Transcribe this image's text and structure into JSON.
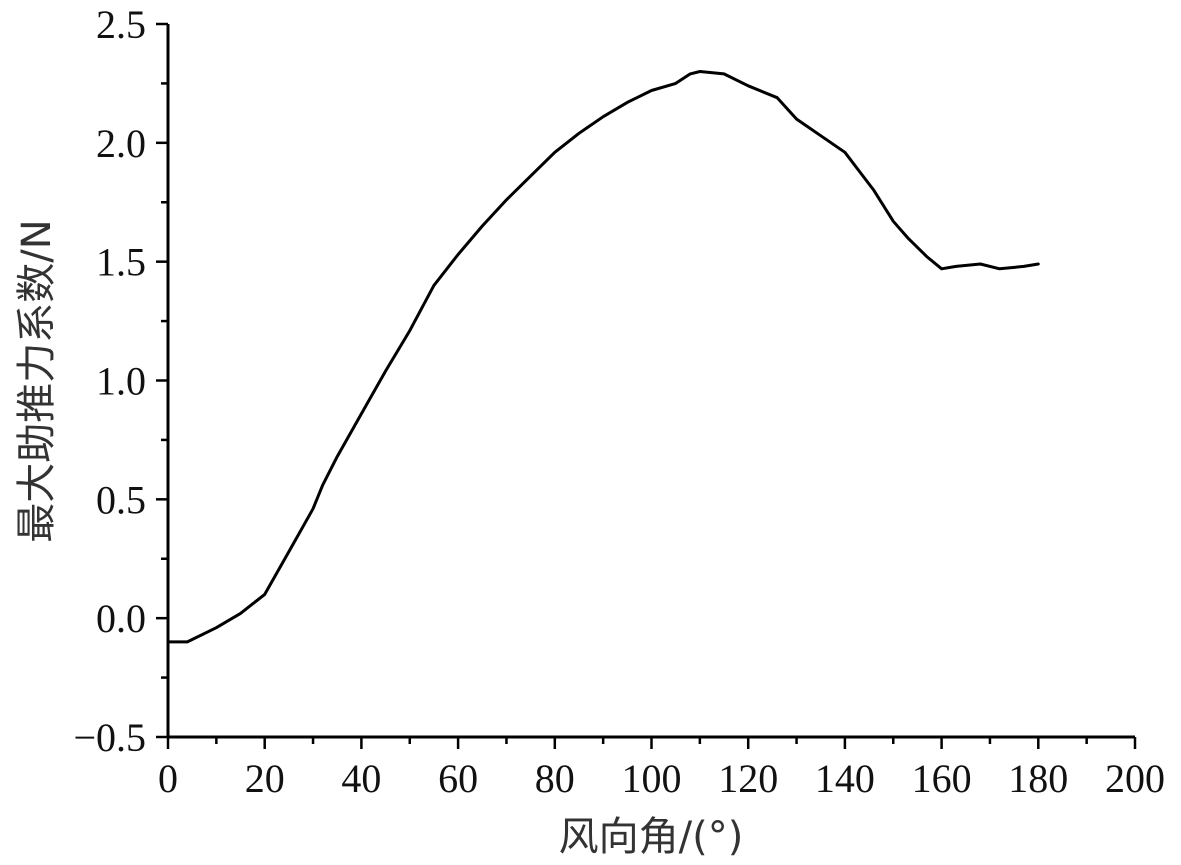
{
  "chart_data": {
    "type": "line",
    "title": "",
    "xlabel": "风向角/(°)",
    "ylabel": "最大助推力系数/N",
    "xlim": [
      0,
      200
    ],
    "ylim": [
      -0.5,
      2.5
    ],
    "x_ticks": [
      "0",
      "20",
      "40",
      "60",
      "80",
      "100",
      "120",
      "140",
      "160",
      "180",
      "200"
    ],
    "y_ticks": [
      "2.5",
      "2.0",
      "1.5",
      "1.0",
      "0.5",
      "0.0",
      "−0.5"
    ],
    "x_tick_values": [
      0,
      20,
      40,
      60,
      80,
      100,
      120,
      140,
      160,
      180,
      200
    ],
    "y_tick_values": [
      2.5,
      2.0,
      1.5,
      1.0,
      0.5,
      0.0,
      -0.5
    ],
    "x_minor_step": 10,
    "y_minor_step": 0.25,
    "grid": false,
    "legend": "none",
    "line_color": "#000000",
    "series": [
      {
        "x": [
          0,
          4,
          10,
          15,
          20,
          25,
          30,
          32,
          35,
          40,
          45,
          50,
          55,
          60,
          65,
          70,
          75,
          80,
          85,
          90,
          95,
          100,
          105,
          108,
          110,
          115,
          120,
          126,
          130,
          135,
          140,
          143,
          146,
          150,
          153,
          157,
          160,
          163,
          168,
          172,
          177,
          180
        ],
        "y": [
          -0.1,
          -0.1,
          -0.04,
          0.02,
          0.1,
          0.28,
          0.46,
          0.56,
          0.68,
          0.86,
          1.04,
          1.21,
          1.4,
          1.53,
          1.65,
          1.76,
          1.86,
          1.96,
          2.04,
          2.11,
          2.17,
          2.22,
          2.25,
          2.29,
          2.3,
          2.29,
          2.24,
          2.19,
          2.1,
          2.03,
          1.96,
          1.88,
          1.8,
          1.67,
          1.6,
          1.52,
          1.47,
          1.48,
          1.49,
          1.47,
          1.48,
          1.49
        ]
      }
    ]
  }
}
